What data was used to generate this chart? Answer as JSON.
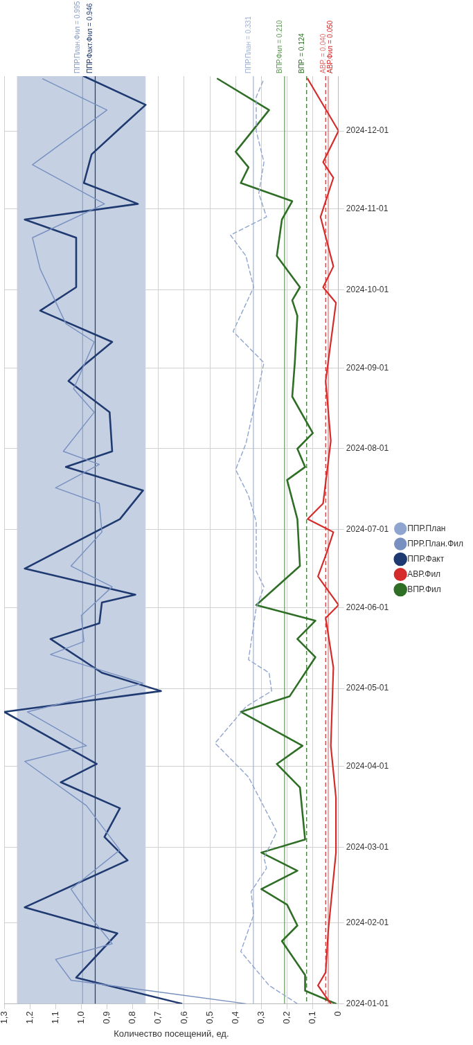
{
  "chart_data": {
    "type": "line",
    "orientation": "horizontal",
    "xlabel": "Количество посещений, ед.",
    "xlim": [
      1.3,
      0
    ],
    "xticks": [
      {
        "value": 1.3,
        "label": "1,3"
      },
      {
        "value": 1.2,
        "label": "1,2"
      },
      {
        "value": 1.1,
        "label": "1,1"
      },
      {
        "value": 1.0,
        "label": "1,0"
      },
      {
        "value": 0.9,
        "label": "0,9"
      },
      {
        "value": 0.8,
        "label": "0,8"
      },
      {
        "value": 0.7,
        "label": "0,7"
      },
      {
        "value": 0.6,
        "label": "0,6"
      },
      {
        "value": 0.5,
        "label": "0,5"
      },
      {
        "value": 0.4,
        "label": "0,4"
      },
      {
        "value": 0.3,
        "label": "0,3"
      },
      {
        "value": 0.2,
        "label": "0,2"
      },
      {
        "value": 0.1,
        "label": "0,1"
      },
      0
    ],
    "ylim": [
      "2024-01-01",
      "2024-12-22"
    ],
    "yticks": [
      "2024-01-01",
      "2024-02-01",
      "2024-03-01",
      "2024-04-01",
      "2024-05-01",
      "2024-06-01",
      "2024-07-01",
      "2024-08-01",
      "2024-09-01",
      "2024-10-01",
      "2024-11-01",
      "2024-12-01"
    ],
    "grid": true,
    "legend": "right",
    "marker": "none",
    "series": [
      {
        "name": "ППР.План",
        "color": "#8fa5d0",
        "line_style": "dashed",
        "x": [
          "2024-01-01",
          "2024-01-08",
          "2024-01-21",
          "2024-02-04",
          "2024-02-13",
          "2024-02-22",
          "2024-02-26",
          "2024-03-07",
          "2024-03-28",
          "2024-04-10",
          "2024-04-24",
          "2024-04-30",
          "2024-05-07",
          "2024-05-12",
          "2024-06-01",
          "2024-06-09",
          "2024-06-15",
          "2024-07-04",
          "2024-07-14",
          "2024-07-24",
          "2024-08-03",
          "2024-09-03",
          "2024-09-15",
          "2024-10-02",
          "2024-10-14",
          "2024-10-22",
          "2024-10-29",
          "2024-11-07",
          "2024-11-19",
          "2024-12-01",
          "2024-12-14",
          "2024-12-21"
        ],
        "values": [
          0.16,
          0.27,
          0.38,
          0.33,
          0.34,
          0.28,
          0.29,
          0.24,
          0.35,
          0.48,
          0.36,
          0.26,
          0.27,
          0.35,
          0.32,
          0.29,
          0.32,
          0.32,
          0.35,
          0.4,
          0.36,
          0.29,
          0.41,
          0.33,
          0.36,
          0.42,
          0.28,
          0.31,
          0.29,
          0.32,
          0.32,
          0.29
        ]
      },
      {
        "name": "ПРР.План.Фил",
        "color": "#7890c0",
        "x": [
          "2024-01-01",
          "2024-01-10",
          "2024-01-18",
          "2024-01-24",
          "2024-02-04",
          "2024-02-14",
          "2024-02-29",
          "2024-03-17",
          "2024-04-03",
          "2024-04-09",
          "2024-04-22",
          "2024-05-03",
          "2024-05-14",
          "2024-05-19",
          "2024-05-29",
          "2024-06-09",
          "2024-06-17",
          "2024-06-30",
          "2024-07-11",
          "2024-07-17",
          "2024-07-26",
          "2024-07-31",
          "2024-08-15",
          "2024-08-24",
          "2024-09-11",
          "2024-09-18",
          "2024-10-09",
          "2024-10-21",
          "2024-11-03",
          "2024-11-18",
          "2024-12-09",
          "2024-12-21"
        ],
        "values": [
          0.36,
          1.04,
          1.1,
          0.88,
          0.97,
          1.04,
          0.85,
          0.98,
          1.22,
          0.98,
          1.21,
          0.76,
          1.12,
          0.99,
          1.0,
          0.88,
          1.04,
          0.92,
          0.93,
          1.1,
          0.93,
          1.07,
          0.95,
          1.03,
          0.95,
          1.06,
          1.16,
          1.19,
          0.91,
          1.19,
          0.9,
          1.15
        ]
      },
      {
        "name": "ППР.Факт",
        "color": "#1f3a70",
        "x": [
          "2024-01-01",
          "2024-01-11",
          "2024-01-28",
          "2024-02-07",
          "2024-02-25",
          "2024-03-05",
          "2024-03-16",
          "2024-03-26",
          "2024-04-02",
          "2024-04-22",
          "2024-04-30",
          "2024-05-07",
          "2024-05-20",
          "2024-05-26",
          "2024-06-03",
          "2024-06-06",
          "2024-06-16",
          "2024-07-05",
          "2024-07-16",
          "2024-07-25",
          "2024-07-31",
          "2024-08-15",
          "2024-08-27",
          "2024-09-02",
          "2024-09-11",
          "2024-09-23",
          "2024-10-02",
          "2024-10-21",
          "2024-10-28",
          "2024-11-03",
          "2024-11-11",
          "2024-11-22",
          "2024-12-02",
          "2024-12-11",
          "2024-12-22"
        ],
        "values": [
          0.61,
          1.02,
          0.86,
          1.22,
          0.82,
          0.91,
          0.85,
          1.08,
          0.94,
          1.3,
          0.69,
          0.92,
          1.12,
          0.93,
          0.92,
          0.79,
          1.22,
          0.85,
          0.76,
          1.06,
          0.88,
          0.89,
          1.05,
          0.99,
          0.88,
          1.16,
          1.02,
          1.02,
          1.22,
          0.78,
          0.99,
          0.96,
          0.85,
          0.75,
          0.99
        ]
      },
      {
        "name": "АВР.Фил",
        "color": "#d42b2b",
        "x": [
          "2024-01-01",
          "2024-01-08",
          "2024-01-13",
          "2024-01-29",
          "2024-02-08",
          "2024-02-28",
          "2024-03-20",
          "2024-04-09",
          "2024-05-09",
          "2024-05-28",
          "2024-06-02",
          "2024-06-13",
          "2024-06-21",
          "2024-06-30",
          "2024-07-05",
          "2024-07-11",
          "2024-08-04",
          "2024-08-27",
          "2024-09-26",
          "2024-10-02",
          "2024-10-10",
          "2024-10-29",
          "2024-11-13",
          "2024-11-19",
          "2024-12-01",
          "2024-12-21"
        ],
        "values": [
          0.03,
          0.08,
          0.05,
          0.04,
          0.03,
          0.01,
          0.01,
          0.03,
          0.02,
          0.05,
          0,
          0.08,
          0.05,
          0.02,
          0.12,
          0.06,
          0.03,
          0.05,
          0.01,
          0.06,
          0.02,
          0.07,
          0.02,
          0.06,
          0,
          0.12
        ]
      },
      {
        "name": "ВПР.Фил",
        "color": "#2e6e25",
        "x": [
          "2024-01-01",
          "2024-01-06",
          "2024-01-12",
          "2024-01-25",
          "2024-01-31",
          "2024-02-08",
          "2024-02-14",
          "2024-02-21",
          "2024-02-28",
          "2024-03-04",
          "2024-03-24",
          "2024-04-02",
          "2024-04-09",
          "2024-04-22",
          "2024-04-28",
          "2024-05-01",
          "2024-05-13",
          "2024-05-20",
          "2024-05-27",
          "2024-06-02",
          "2024-06-17",
          "2024-07-05",
          "2024-07-20",
          "2024-07-25",
          "2024-08-01",
          "2024-08-07",
          "2024-08-21",
          "2024-09-03",
          "2024-09-21",
          "2024-09-27",
          "2024-10-02",
          "2024-10-14",
          "2024-10-28",
          "2024-11-04",
          "2024-11-11",
          "2024-11-17",
          "2024-11-23",
          "2024-12-09",
          "2024-12-21"
        ],
        "values": [
          0.01,
          0.13,
          0.13,
          0.22,
          0.16,
          0.2,
          0.3,
          0.16,
          0.3,
          0.13,
          0.15,
          0.24,
          0.14,
          0.38,
          0.19,
          0.17,
          0.09,
          0.16,
          0.09,
          0.32,
          0.15,
          0.16,
          0.2,
          0.13,
          0.16,
          0.1,
          0.18,
          0.17,
          0.16,
          0.18,
          0.15,
          0.24,
          0.22,
          0.18,
          0.38,
          0.35,
          0.4,
          0.27,
          0.47
        ]
      }
    ],
    "bands": [
      {
        "axis": "x",
        "from": 0.75,
        "to": 1.25,
        "color": "#c5d0e3"
      }
    ],
    "ref_lines": [
      {
        "axis": "x",
        "value": 0.995,
        "label": "ППР.План.Фил = 0.995",
        "color": "#8aa0c8"
      },
      {
        "axis": "x",
        "value": 0.946,
        "label": "ППР.Факт.Фил = 0.946",
        "color": "#1f3a70"
      },
      {
        "axis": "x",
        "value": 0.331,
        "label": "ППР.План = 0.331",
        "color": "#9fb2d6"
      },
      {
        "axis": "x",
        "value": 0.21,
        "label": "ВПР.Фил = 0.210",
        "color": "#5f9a55"
      },
      {
        "axis": "x",
        "value": 0.124,
        "label": "ВПР. = 0.124",
        "color": "#2e6e25",
        "line_style": "dashed"
      },
      {
        "axis": "x",
        "value": 0.05,
        "label": "АВР.Фил = 0.050",
        "color": "#d42b2b",
        "line_style": "dashed"
      },
      {
        "axis": "x",
        "value": 0.04,
        "label": "АВР. = 0.040",
        "color": "#e07070"
      }
    ]
  }
}
